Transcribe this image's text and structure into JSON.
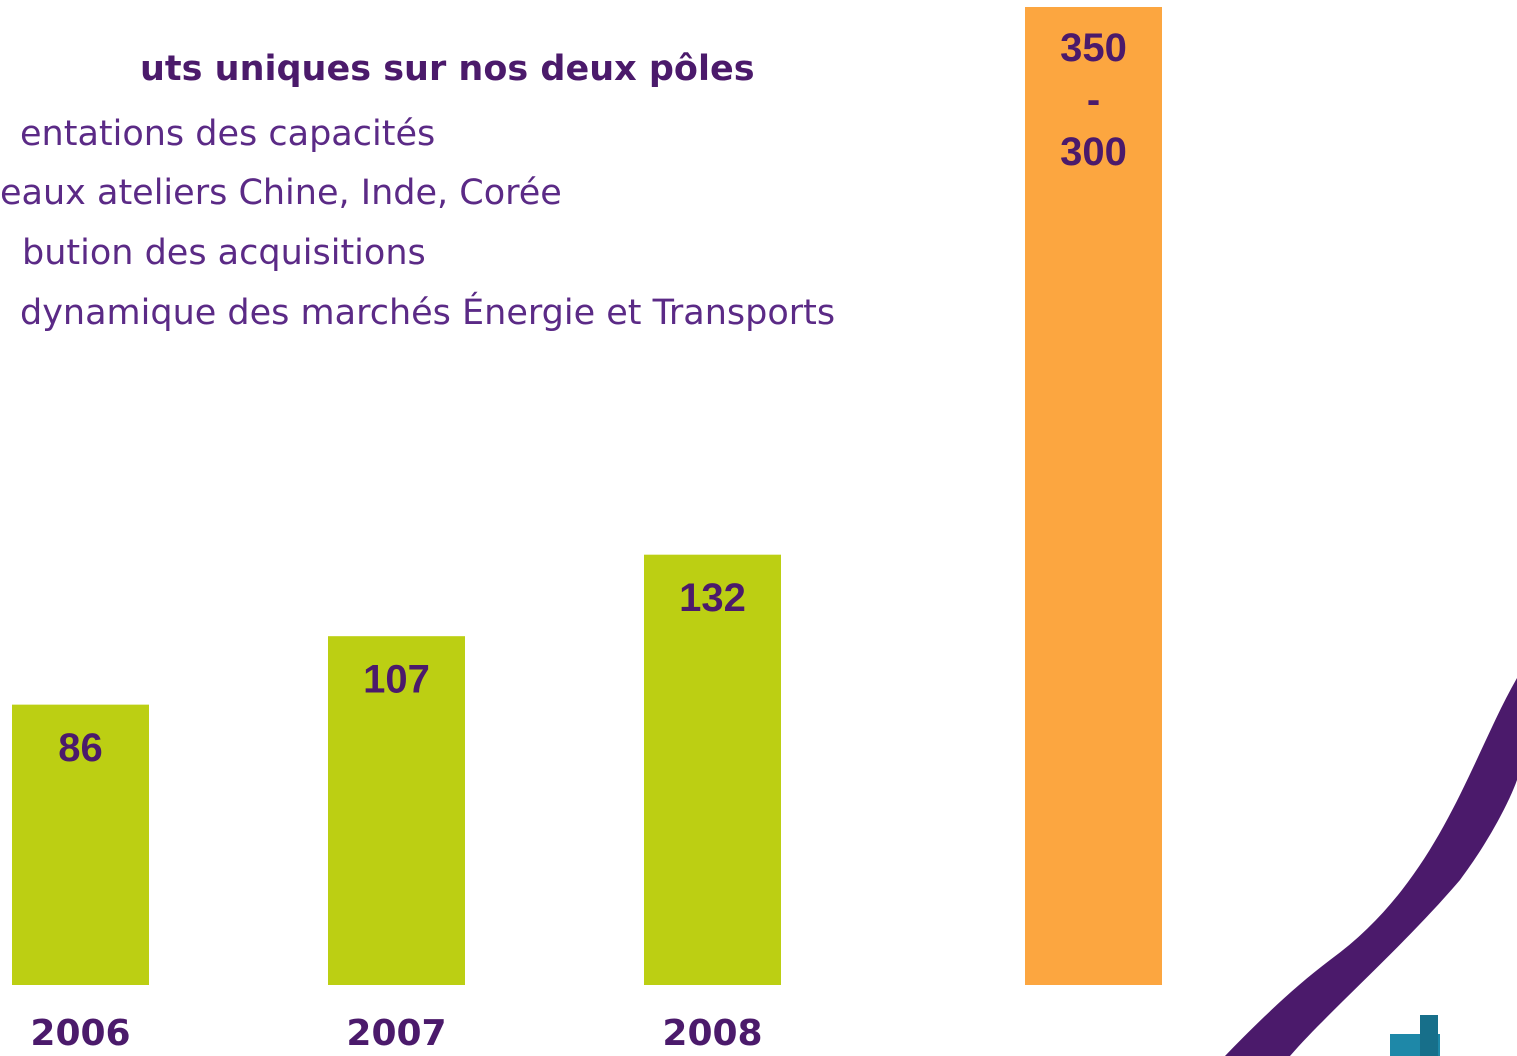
{
  "chart_data": {
    "type": "bar",
    "title": "uts uniques sur nos deux pôles",
    "bullets": [
      "entations des capacités",
      "eaux ateliers Chine, Inde, Corée",
      "bution des acquisitions",
      "dynamique des marchés Énergie et Transports"
    ],
    "categories": [
      "2006",
      "2007",
      "2008",
      null
    ],
    "values": [
      86,
      107,
      132,
      300
    ],
    "value_labels": [
      null,
      null,
      null,
      "350 - 300"
    ],
    "colors": [
      "#bccf13",
      "#bccf13",
      "#bccf13",
      "#fca640"
    ]
  }
}
